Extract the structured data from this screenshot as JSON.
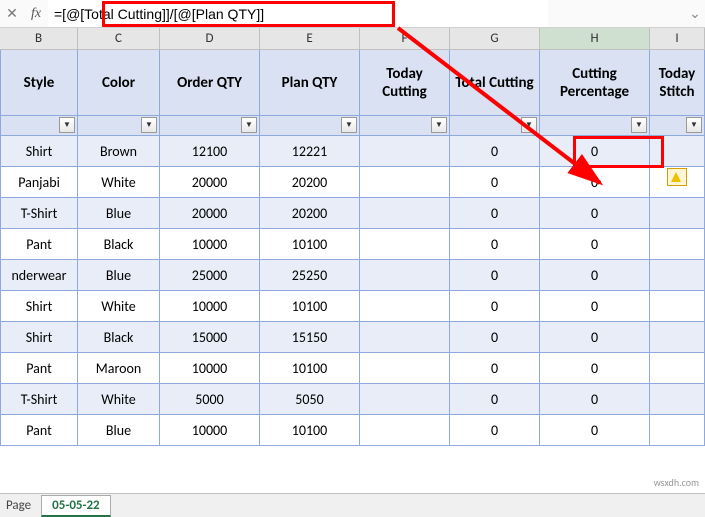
{
  "formula_bar": {
    "fx_label": "fx",
    "formula": "=[@[Total Cutting]]/[@[Plan QTY]]"
  },
  "columns": [
    {
      "letter": "B",
      "label": "Style",
      "cls": "c-B"
    },
    {
      "letter": "C",
      "label": "Color",
      "cls": "c-C"
    },
    {
      "letter": "D",
      "label": "Order QTY",
      "cls": "c-D"
    },
    {
      "letter": "E",
      "label": "Plan QTY",
      "cls": "c-E"
    },
    {
      "letter": "F",
      "label": "Today Cutting",
      "cls": "c-F"
    },
    {
      "letter": "G",
      "label": "Total Cutting",
      "cls": "c-G"
    },
    {
      "letter": "H",
      "label": "Cutting Percentage",
      "cls": "c-H"
    },
    {
      "letter": "I",
      "label": "Today Stitch",
      "cls": "c-I"
    }
  ],
  "rows": [
    {
      "style": "Shirt",
      "color": "Brown",
      "order": "12100",
      "plan": "12221",
      "today": "",
      "total": "0",
      "pct": "0"
    },
    {
      "style": "Panjabi",
      "color": "White",
      "order": "20000",
      "plan": "20200",
      "today": "",
      "total": "0",
      "pct": "0"
    },
    {
      "style": "T-Shirt",
      "color": "Blue",
      "order": "20000",
      "plan": "20200",
      "today": "",
      "total": "0",
      "pct": "0"
    },
    {
      "style": "Pant",
      "color": "Black",
      "order": "10000",
      "plan": "10100",
      "today": "",
      "total": "0",
      "pct": "0"
    },
    {
      "style": "nderwear",
      "color": "Blue",
      "order": "25000",
      "plan": "25250",
      "today": "",
      "total": "0",
      "pct": "0"
    },
    {
      "style": "Shirt",
      "color": "White",
      "order": "10000",
      "plan": "10100",
      "today": "",
      "total": "0",
      "pct": "0"
    },
    {
      "style": "Shirt",
      "color": "Black",
      "order": "15000",
      "plan": "15150",
      "today": "",
      "total": "0",
      "pct": "0"
    },
    {
      "style": "Pant",
      "color": "Maroon",
      "order": "10000",
      "plan": "10100",
      "today": "",
      "total": "0",
      "pct": "0"
    },
    {
      "style": "T-Shirt",
      "color": "White",
      "order": "5000",
      "plan": "5050",
      "today": "",
      "total": "0",
      "pct": "0"
    },
    {
      "style": "Pant",
      "color": "Blue",
      "order": "10000",
      "plan": "10100",
      "today": "",
      "total": "0",
      "pct": "0"
    }
  ],
  "sheet": {
    "label": "Page",
    "tab": "05-05-22"
  },
  "active_col": "H",
  "watermark": "wsxdh.com",
  "colors": {
    "header_bg": "#d9e1f2",
    "band_bg": "#e8edf7",
    "border": "#8ea9db",
    "highlight": "#ff0000",
    "tab_accent": "#217346"
  }
}
